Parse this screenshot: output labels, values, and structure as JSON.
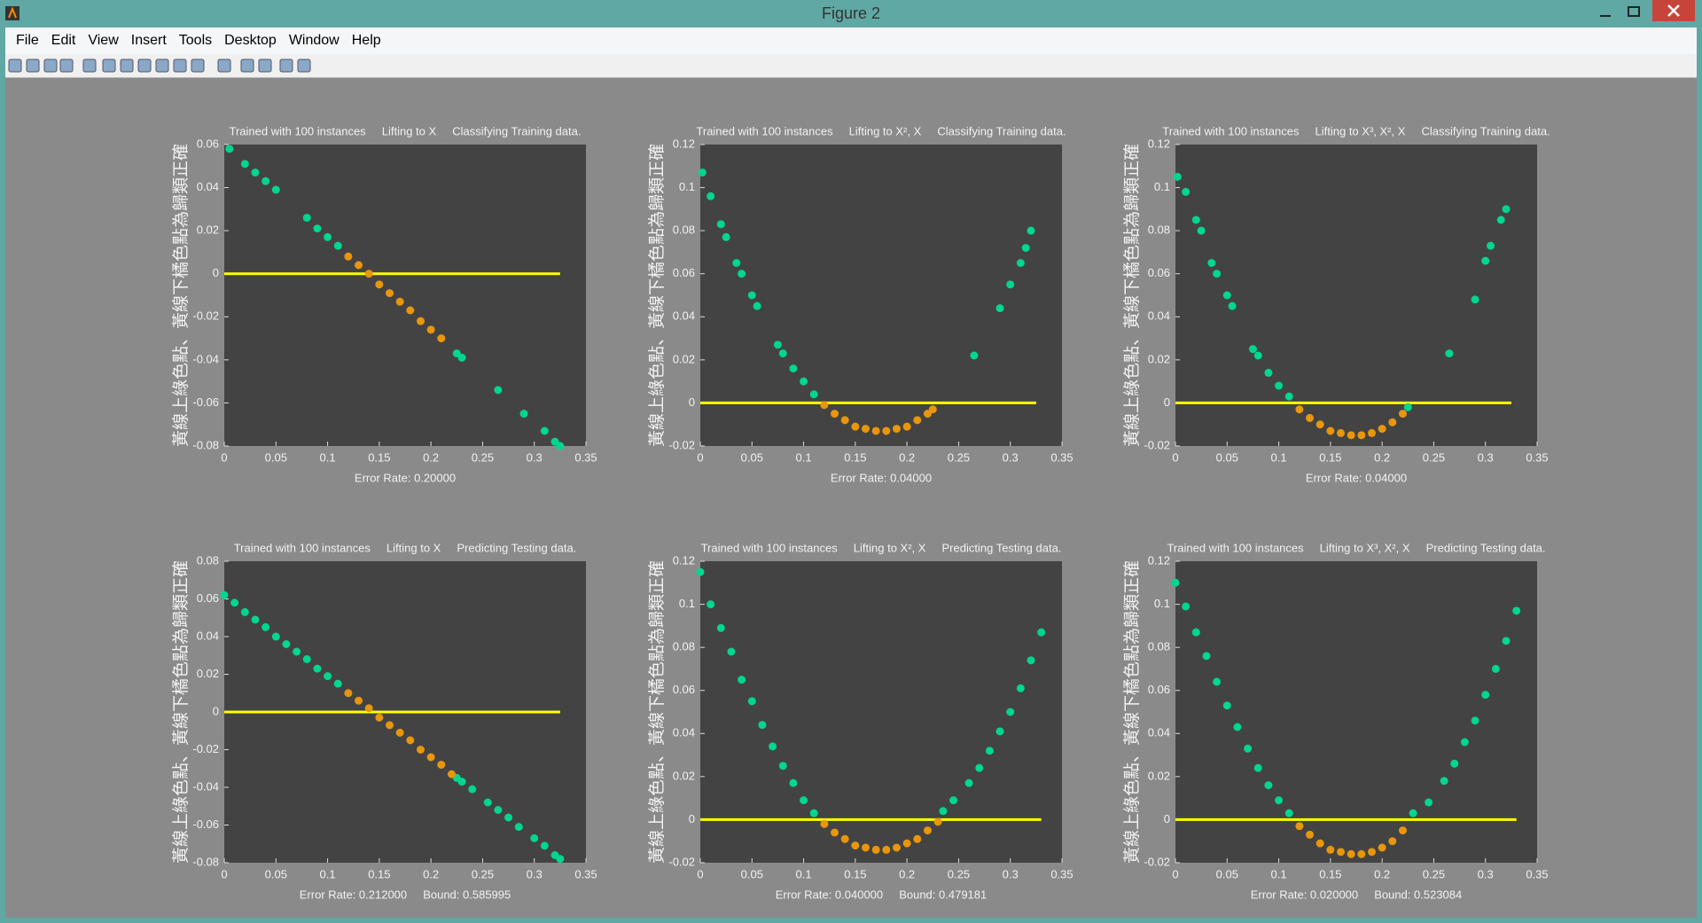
{
  "window": {
    "title": "Figure 2",
    "menu": [
      "File",
      "Edit",
      "View",
      "Insert",
      "Tools",
      "Desktop",
      "Window",
      "Help"
    ]
  },
  "chart_data": [
    {
      "type": "scatter",
      "title": "Trained with 100 instances     Lifting to X     Classifying Training data.",
      "y_label": "黃線上綠色點、黃線下橘色點為歸類正確",
      "x_label": "Error Rate: 0.20000",
      "xlim": [
        0,
        0.35
      ],
      "xticks": [
        0,
        0.05,
        0.1,
        0.15,
        0.2,
        0.25,
        0.3,
        0.35
      ],
      "ylim": [
        -0.08,
        0.06
      ],
      "yticks": [
        -0.08,
        -0.06,
        -0.04,
        -0.02,
        0,
        0.02,
        0.04,
        0.06
      ],
      "series": [
        {
          "mode": "line",
          "color": "#ffff00",
          "x": [
            0,
            0.325
          ],
          "values": [
            0,
            0
          ]
        },
        {
          "mode": "markers",
          "color": "#00d68f",
          "x": [
            0.005,
            0.02,
            0.03,
            0.04,
            0.05,
            0.08,
            0.09,
            0.1,
            0.11,
            0.225,
            0.23,
            0.265,
            0.29,
            0.31,
            0.32,
            0.325
          ],
          "values": [
            0.058,
            0.051,
            0.047,
            0.043,
            0.039,
            0.026,
            0.021,
            0.017,
            0.013,
            -0.037,
            -0.039,
            -0.054,
            -0.065,
            -0.073,
            -0.078,
            -0.08
          ]
        },
        {
          "mode": "markers",
          "color": "#e8960c",
          "x": [
            0.12,
            0.13,
            0.14,
            0.15,
            0.16,
            0.17,
            0.18,
            0.19,
            0.2,
            0.21
          ],
          "values": [
            0.008,
            0.004,
            0,
            -0.005,
            -0.009,
            -0.013,
            -0.017,
            -0.022,
            -0.026,
            -0.03
          ]
        }
      ]
    },
    {
      "type": "scatter",
      "title": "Trained with 100 instances     Lifting to X², X     Classifying Training data.",
      "y_label": "黃線上綠色點、黃線下橘色點為歸類正確",
      "x_label": "Error Rate: 0.04000",
      "xlim": [
        0,
        0.35
      ],
      "xticks": [
        0,
        0.05,
        0.1,
        0.15,
        0.2,
        0.25,
        0.3,
        0.35
      ],
      "ylim": [
        -0.02,
        0.12
      ],
      "yticks": [
        -0.02,
        0,
        0.02,
        0.04,
        0.06,
        0.08,
        0.1,
        0.12
      ],
      "series": [
        {
          "mode": "line",
          "color": "#ffff00",
          "x": [
            0,
            0.325
          ],
          "values": [
            0,
            0
          ]
        },
        {
          "mode": "markers",
          "color": "#00d68f",
          "x": [
            0.002,
            0.01,
            0.02,
            0.025,
            0.035,
            0.04,
            0.05,
            0.055,
            0.075,
            0.08,
            0.09,
            0.1,
            0.11,
            0.265,
            0.29,
            0.3,
            0.31,
            0.315,
            0.32
          ],
          "values": [
            0.107,
            0.096,
            0.083,
            0.077,
            0.065,
            0.06,
            0.05,
            0.045,
            0.027,
            0.023,
            0.016,
            0.01,
            0.004,
            0.022,
            0.044,
            0.055,
            0.065,
            0.072,
            0.08
          ]
        },
        {
          "mode": "markers",
          "color": "#e8960c",
          "x": [
            0.12,
            0.13,
            0.14,
            0.15,
            0.16,
            0.17,
            0.18,
            0.19,
            0.2,
            0.21,
            0.22,
            0.225
          ],
          "values": [
            -0.001,
            -0.005,
            -0.008,
            -0.011,
            -0.012,
            -0.013,
            -0.013,
            -0.012,
            -0.011,
            -0.008,
            -0.005,
            -0.003
          ]
        }
      ]
    },
    {
      "type": "scatter",
      "title": "Trained with 100 instances     Lifting to X³, X², X     Classifying Training data.",
      "y_label": "黃線上綠色點、黃線下橘色點為歸類正確",
      "x_label": "Error Rate: 0.04000",
      "xlim": [
        0,
        0.35
      ],
      "xticks": [
        0,
        0.05,
        0.1,
        0.15,
        0.2,
        0.25,
        0.3,
        0.35
      ],
      "ylim": [
        -0.02,
        0.12
      ],
      "yticks": [
        -0.02,
        0,
        0.02,
        0.04,
        0.06,
        0.08,
        0.1,
        0.12
      ],
      "series": [
        {
          "mode": "line",
          "color": "#ffff00",
          "x": [
            0,
            0.325
          ],
          "values": [
            0,
            0
          ]
        },
        {
          "mode": "markers",
          "color": "#00d68f",
          "x": [
            0.002,
            0.01,
            0.02,
            0.025,
            0.035,
            0.04,
            0.05,
            0.055,
            0.075,
            0.08,
            0.09,
            0.1,
            0.11,
            0.225,
            0.265,
            0.29,
            0.3,
            0.305,
            0.315,
            0.32
          ],
          "values": [
            0.105,
            0.098,
            0.085,
            0.08,
            0.065,
            0.06,
            0.05,
            0.045,
            0.025,
            0.022,
            0.014,
            0.008,
            0.003,
            -0.002,
            0.023,
            0.048,
            0.066,
            0.073,
            0.085,
            0.09
          ]
        },
        {
          "mode": "markers",
          "color": "#e8960c",
          "x": [
            0.12,
            0.13,
            0.14,
            0.15,
            0.16,
            0.17,
            0.18,
            0.19,
            0.2,
            0.21,
            0.22
          ],
          "values": [
            -0.003,
            -0.007,
            -0.01,
            -0.013,
            -0.014,
            -0.015,
            -0.015,
            -0.014,
            -0.012,
            -0.009,
            -0.005
          ]
        }
      ]
    },
    {
      "type": "scatter",
      "title": "Trained with 100 instances     Lifting to X     Predicting Testing data.",
      "y_label": "黃線上綠色點、黃線下橘色點為歸類正確",
      "x_label": "Error Rate: 0.212000     Bound: 0.585995",
      "xlim": [
        0,
        0.35
      ],
      "xticks": [
        0,
        0.05,
        0.1,
        0.15,
        0.2,
        0.25,
        0.3,
        0.35
      ],
      "ylim": [
        -0.08,
        0.08
      ],
      "yticks": [
        -0.08,
        -0.06,
        -0.04,
        -0.02,
        0,
        0.02,
        0.04,
        0.06,
        0.08
      ],
      "series": [
        {
          "mode": "line",
          "color": "#ffff00",
          "x": [
            0,
            0.325
          ],
          "values": [
            0,
            0
          ]
        },
        {
          "mode": "markers",
          "color": "#00d68f",
          "x": [
            0,
            0.01,
            0.02,
            0.03,
            0.04,
            0.05,
            0.06,
            0.07,
            0.08,
            0.09,
            0.1,
            0.11,
            0.225,
            0.23,
            0.24,
            0.255,
            0.265,
            0.275,
            0.285,
            0.3,
            0.31,
            0.32,
            0.325
          ],
          "values": [
            0.062,
            0.058,
            0.053,
            0.049,
            0.045,
            0.04,
            0.036,
            0.032,
            0.028,
            0.023,
            0.019,
            0.015,
            -0.035,
            -0.037,
            -0.041,
            -0.048,
            -0.052,
            -0.056,
            -0.061,
            -0.067,
            -0.071,
            -0.076,
            -0.078
          ]
        },
        {
          "mode": "markers",
          "color": "#e8960c",
          "x": [
            0.12,
            0.13,
            0.14,
            0.15,
            0.16,
            0.17,
            0.18,
            0.19,
            0.2,
            0.21,
            0.22
          ],
          "values": [
            0.01,
            0.006,
            0.002,
            -0.003,
            -0.007,
            -0.011,
            -0.015,
            -0.02,
            -0.024,
            -0.028,
            -0.033
          ]
        }
      ]
    },
    {
      "type": "scatter",
      "title": "Trained with 100 instances     Lifting to X², X     Predicting Testing data.",
      "y_label": "黃線上綠色點、黃線下橘色點為歸類正確",
      "x_label": "Error Rate: 0.040000     Bound: 0.479181",
      "xlim": [
        0,
        0.35
      ],
      "xticks": [
        0,
        0.05,
        0.1,
        0.15,
        0.2,
        0.25,
        0.3,
        0.35
      ],
      "ylim": [
        -0.02,
        0.12
      ],
      "yticks": [
        -0.02,
        0,
        0.02,
        0.04,
        0.06,
        0.08,
        0.1,
        0.12
      ],
      "series": [
        {
          "mode": "line",
          "color": "#ffff00",
          "x": [
            0,
            0.33
          ],
          "values": [
            0,
            0
          ]
        },
        {
          "mode": "markers",
          "color": "#00d68f",
          "x": [
            0,
            0.01,
            0.02,
            0.03,
            0.04,
            0.05,
            0.06,
            0.07,
            0.08,
            0.09,
            0.1,
            0.11,
            0.235,
            0.245,
            0.26,
            0.27,
            0.28,
            0.29,
            0.3,
            0.31,
            0.32,
            0.33
          ],
          "values": [
            0.115,
            0.1,
            0.089,
            0.078,
            0.065,
            0.055,
            0.044,
            0.034,
            0.025,
            0.017,
            0.009,
            0.003,
            0.004,
            0.009,
            0.017,
            0.024,
            0.032,
            0.041,
            0.05,
            0.061,
            0.074,
            0.087
          ]
        },
        {
          "mode": "markers",
          "color": "#e8960c",
          "x": [
            0.12,
            0.13,
            0.14,
            0.15,
            0.16,
            0.17,
            0.18,
            0.19,
            0.2,
            0.21,
            0.22,
            0.23
          ],
          "values": [
            -0.002,
            -0.006,
            -0.009,
            -0.012,
            -0.013,
            -0.014,
            -0.014,
            -0.013,
            -0.011,
            -0.009,
            -0.005,
            -0.001
          ]
        }
      ]
    },
    {
      "type": "scatter",
      "title": "Trained with 100 instances     Lifting to X³, X², X     Predicting Testing data.",
      "y_label": "黃線上綠色點、黃線下橘色點為歸類正確",
      "x_label": "Error Rate: 0.020000     Bound: 0.523084",
      "xlim": [
        0,
        0.35
      ],
      "xticks": [
        0,
        0.05,
        0.1,
        0.15,
        0.2,
        0.25,
        0.3,
        0.35
      ],
      "ylim": [
        -0.02,
        0.12
      ],
      "yticks": [
        -0.02,
        0,
        0.02,
        0.04,
        0.06,
        0.08,
        0.1,
        0.12
      ],
      "series": [
        {
          "mode": "line",
          "color": "#ffff00",
          "x": [
            0,
            0.33
          ],
          "values": [
            0,
            0
          ]
        },
        {
          "mode": "markers",
          "color": "#00d68f",
          "x": [
            0,
            0.01,
            0.02,
            0.03,
            0.04,
            0.05,
            0.06,
            0.07,
            0.08,
            0.09,
            0.1,
            0.11,
            0.23,
            0.245,
            0.26,
            0.27,
            0.28,
            0.29,
            0.3,
            0.31,
            0.32,
            0.33
          ],
          "values": [
            0.11,
            0.099,
            0.087,
            0.076,
            0.064,
            0.053,
            0.043,
            0.033,
            0.024,
            0.016,
            0.009,
            0.003,
            0.003,
            0.008,
            0.018,
            0.026,
            0.036,
            0.046,
            0.058,
            0.07,
            0.083,
            0.097
          ]
        },
        {
          "mode": "markers",
          "color": "#e8960c",
          "x": [
            0.12,
            0.13,
            0.14,
            0.15,
            0.16,
            0.17,
            0.18,
            0.19,
            0.2,
            0.21,
            0.22
          ],
          "values": [
            -0.003,
            -0.007,
            -0.011,
            -0.014,
            -0.015,
            -0.016,
            -0.016,
            -0.015,
            -0.013,
            -0.01,
            -0.005
          ]
        }
      ]
    }
  ]
}
